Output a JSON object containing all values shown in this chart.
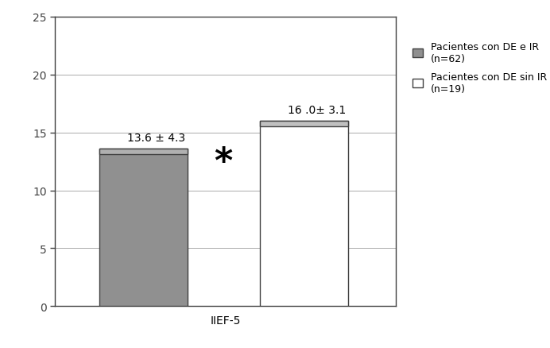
{
  "bar1_value": 13.6,
  "bar2_value": 16.0,
  "bar1_label": "Pacientes con DE e IR\n(n=62)",
  "bar2_label": "Pacientes con DE sin IR\n(n=19)",
  "bar1_color": "#909090",
  "bar2_color": "#ffffff",
  "bar1_top_color": "#b0b0b0",
  "bar2_top_color": "#c0c0c0",
  "bar1_annotation": "13.6 ± 4.3",
  "bar2_annotation": "16 .0± 3.1",
  "star_text": "*",
  "xlabel": "IIEF-5",
  "ylim": [
    0,
    25
  ],
  "yticks": [
    0,
    5,
    10,
    15,
    20,
    25
  ],
  "bar_edge_color": "#404040",
  "background_color": "#ffffff",
  "grid_color": "#aaaaaa",
  "annotation_fontsize": 10,
  "star_fontsize": 32,
  "legend_fontsize": 9,
  "xlabel_fontsize": 10
}
